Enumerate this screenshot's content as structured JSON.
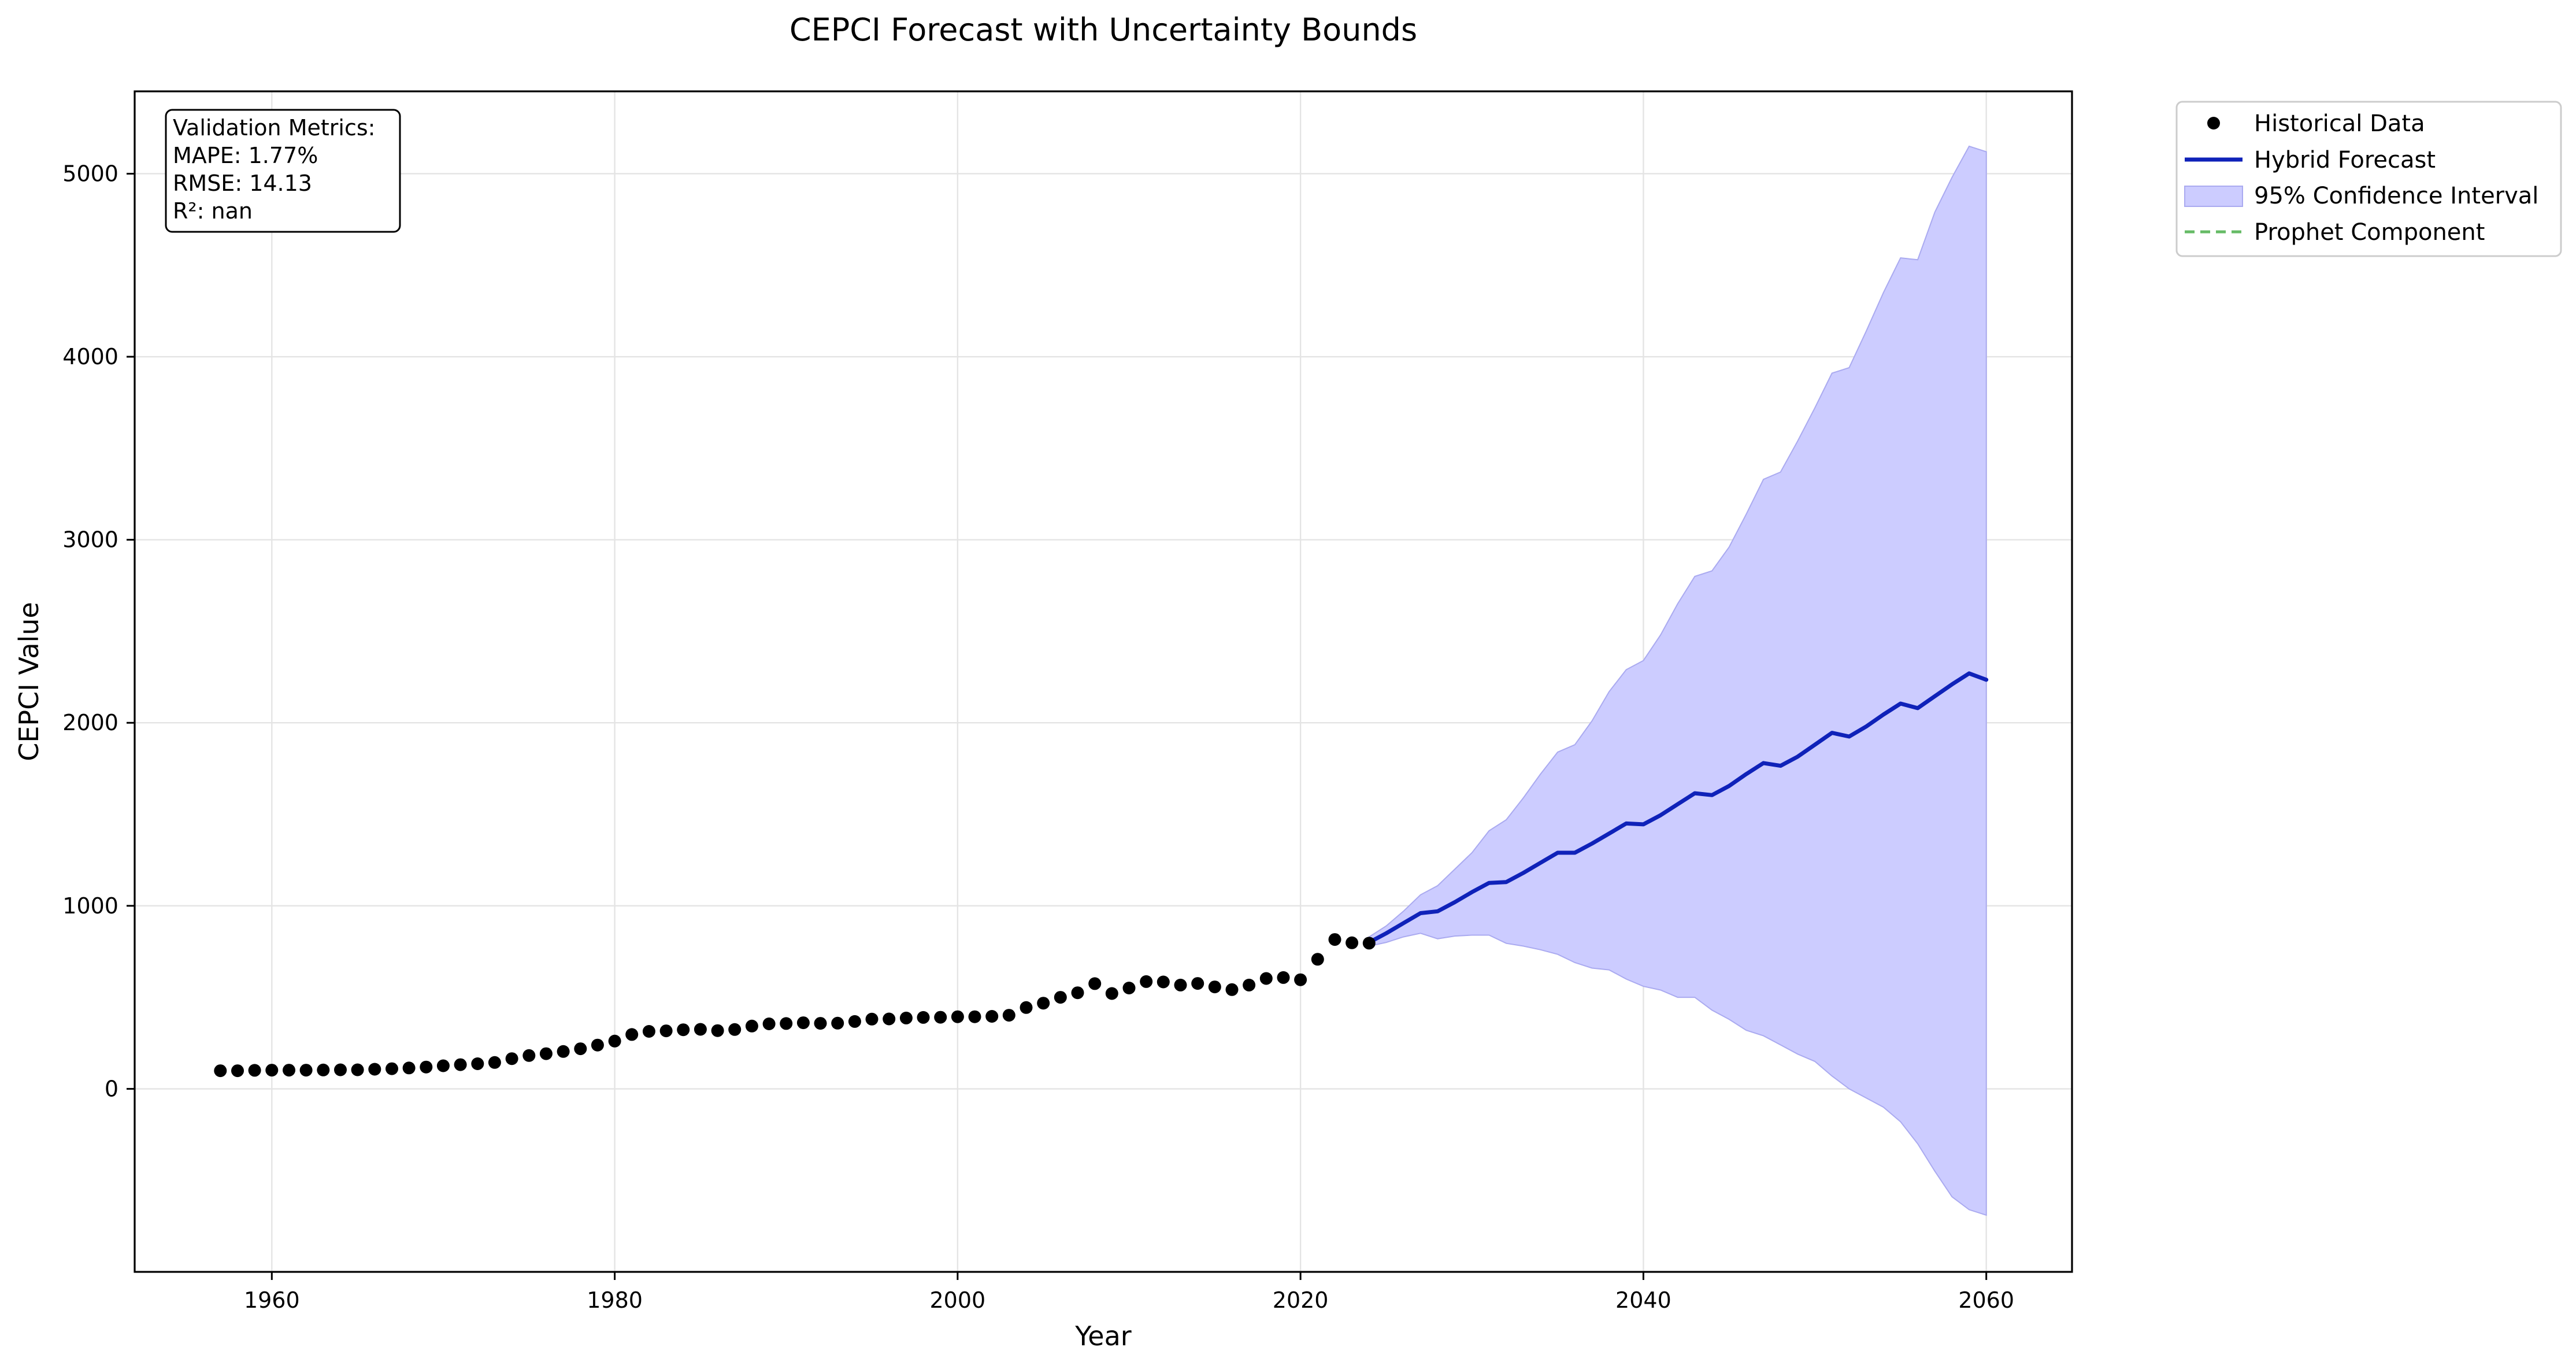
{
  "chart_data": {
    "type": "line",
    "title": "CEPCI Forecast with Uncertainty Bounds",
    "xlabel": "Year",
    "ylabel": "CEPCI Value",
    "xlim": [
      1952,
      2065
    ],
    "ylim": [
      -1000,
      5450
    ],
    "x_ticks": [
      1960,
      1980,
      2000,
      2020,
      2040,
      2060
    ],
    "y_ticks": [
      0,
      1000,
      2000,
      3000,
      4000,
      5000
    ],
    "grid": true,
    "legend_position": "outside-top-right",
    "metrics_box": {
      "lines": [
        "Validation Metrics:",
        "MAPE: 1.77%",
        "RMSE: 14.13",
        "R²: nan"
      ]
    },
    "legend": [
      {
        "label": "Historical Data",
        "kind": "marker",
        "color": "#000000"
      },
      {
        "label": "Hybrid Forecast",
        "kind": "line",
        "color": "#0f22b9"
      },
      {
        "label": "95% Confidence Interval",
        "kind": "fill",
        "color": "#ccccff"
      },
      {
        "label": "Prophet Component",
        "kind": "dashed",
        "color": "#66bb66"
      }
    ],
    "series": [
      {
        "name": "Historical Data",
        "type": "scatter",
        "color": "#000000",
        "x": [
          1957,
          1958,
          1959,
          1960,
          1961,
          1962,
          1963,
          1964,
          1965,
          1966,
          1967,
          1968,
          1969,
          1970,
          1971,
          1972,
          1973,
          1974,
          1975,
          1976,
          1977,
          1978,
          1979,
          1980,
          1981,
          1982,
          1983,
          1984,
          1985,
          1986,
          1987,
          1988,
          1989,
          1990,
          1991,
          1992,
          1993,
          1994,
          1995,
          1996,
          1997,
          1998,
          1999,
          2000,
          2001,
          2002,
          2003,
          2004,
          2005,
          2006,
          2007,
          2008,
          2009,
          2010,
          2011,
          2012,
          2013,
          2014,
          2015,
          2016,
          2017,
          2018,
          2019,
          2020,
          2021,
          2022,
          2023,
          2024
        ],
        "y": [
          99,
          99,
          101,
          102,
          102,
          102,
          103,
          104,
          104,
          107,
          110,
          114,
          119,
          126,
          132,
          137,
          144,
          165,
          182,
          192,
          204,
          219,
          239,
          261,
          297,
          314,
          317,
          323,
          325,
          318,
          324,
          343,
          355,
          357,
          361,
          358,
          359,
          368,
          381,
          382,
          387,
          390,
          391,
          394,
          394,
          396,
          402,
          444,
          468,
          500,
          525,
          575,
          521,
          551,
          586,
          584,
          567,
          576,
          557,
          542,
          567,
          603,
          608,
          596,
          708,
          816,
          798,
          796
        ]
      },
      {
        "name": "Hybrid Forecast",
        "type": "line",
        "color": "#0f22b9",
        "x": [
          2024,
          2025,
          2026,
          2027,
          2028,
          2029,
          2030,
          2031,
          2032,
          2033,
          2034,
          2035,
          2036,
          2037,
          2038,
          2039,
          2040,
          2041,
          2042,
          2043,
          2044,
          2045,
          2046,
          2047,
          2048,
          2049,
          2050,
          2051,
          2052,
          2053,
          2054,
          2055,
          2056,
          2057,
          2058,
          2059,
          2060
        ],
        "y": [
          800,
          850,
          905,
          960,
          970,
          1020,
          1075,
          1125,
          1130,
          1180,
          1235,
          1290,
          1290,
          1340,
          1395,
          1450,
          1445,
          1495,
          1555,
          1615,
          1605,
          1655,
          1720,
          1780,
          1765,
          1815,
          1880,
          1945,
          1925,
          1980,
          2045,
          2105,
          2080,
          2145,
          2210,
          2270,
          2235
        ]
      },
      {
        "name": "95% Confidence Interval",
        "type": "band",
        "color": "#ccccff",
        "x": [
          2024,
          2025,
          2026,
          2027,
          2028,
          2029,
          2030,
          2031,
          2032,
          2033,
          2034,
          2035,
          2036,
          2037,
          2038,
          2039,
          2040,
          2041,
          2042,
          2043,
          2044,
          2045,
          2046,
          2047,
          2048,
          2049,
          2050,
          2051,
          2052,
          2053,
          2054,
          2055,
          2056,
          2057,
          2058,
          2059,
          2060
        ],
        "lower": [
          780,
          800,
          830,
          850,
          820,
          835,
          840,
          840,
          795,
          780,
          760,
          735,
          690,
          660,
          650,
          600,
          560,
          540,
          500,
          500,
          430,
          380,
          320,
          290,
          240,
          190,
          150,
          70,
          0,
          -50,
          -100,
          -180,
          -300,
          -450,
          -590,
          -660,
          -690
        ],
        "upper": [
          830,
          890,
          970,
          1060,
          1110,
          1200,
          1290,
          1410,
          1470,
          1590,
          1720,
          1840,
          1880,
          2010,
          2170,
          2290,
          2340,
          2480,
          2650,
          2800,
          2830,
          2960,
          3140,
          3330,
          3370,
          3540,
          3720,
          3910,
          3940,
          4140,
          4350,
          4540,
          4530,
          4790,
          4980,
          5150,
          5120
        ]
      }
    ]
  }
}
